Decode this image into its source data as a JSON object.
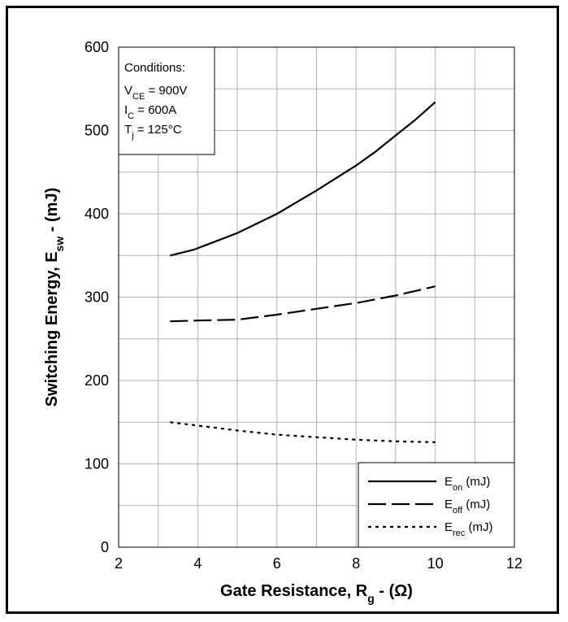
{
  "chart_data": {
    "type": "line",
    "xlabel": {
      "main": "Gate Resistance, R",
      "sub": "g",
      "tail": " - (Ω)"
    },
    "ylabel": {
      "main": "Switching Energy, E",
      "sub": "sw",
      "tail": " - (mJ)"
    },
    "xlim": [
      2,
      12
    ],
    "ylim": [
      0,
      600
    ],
    "xticks": [
      2,
      4,
      6,
      8,
      10,
      12
    ],
    "yticks": [
      0,
      100,
      200,
      300,
      400,
      500,
      600
    ],
    "grid": true,
    "conditions": {
      "title": "Conditions:",
      "lines": [
        {
          "main": "V",
          "sub": "CE",
          "tail": " = 900V"
        },
        {
          "main": "I",
          "sub": "C",
          "tail": " = 600A"
        },
        {
          "main": "T",
          "sub": "j",
          "tail": " = 125°C"
        }
      ]
    },
    "legend_position": "bottom-right",
    "series": [
      {
        "main": "E",
        "sub": "on",
        "tail": " (mJ)",
        "style": "solid",
        "x": [
          3.3,
          3.9,
          5,
          6,
          7,
          8,
          8.5,
          9,
          9.5,
          10
        ],
        "y": [
          350,
          357,
          377,
          400,
          428,
          458,
          475,
          494,
          513,
          534
        ]
      },
      {
        "main": "E",
        "sub": "off",
        "tail": " (mJ)",
        "style": "dashed",
        "x": [
          3.3,
          4,
          5,
          6,
          7,
          8,
          9,
          10
        ],
        "y": [
          271,
          272,
          273,
          279,
          286,
          293,
          302,
          313
        ]
      },
      {
        "main": "E",
        "sub": "rec",
        "tail": " (mJ)",
        "style": "dotted",
        "x": [
          3.3,
          4,
          5,
          6,
          7,
          8,
          9,
          10
        ],
        "y": [
          150,
          146,
          140,
          135,
          132,
          129,
          127,
          126
        ]
      }
    ]
  }
}
